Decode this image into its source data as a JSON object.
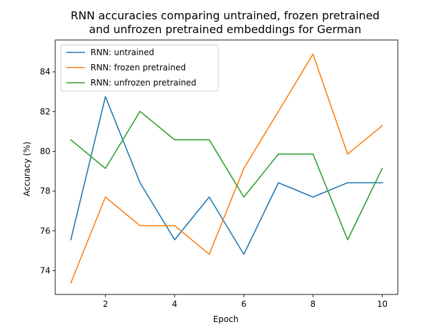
{
  "chart_data": {
    "type": "line",
    "title_lines": [
      "RNN accuracies comparing untrained, frozen pretrained",
      "and unfrozen pretrained embeddings for German"
    ],
    "xlabel": "Epoch",
    "ylabel": "Accuracy (%)",
    "x": [
      1,
      2,
      3,
      4,
      5,
      6,
      7,
      8,
      9,
      10
    ],
    "xlim": [
      0.55,
      10.45
    ],
    "ylim": [
      72.8,
      85.6
    ],
    "xticks": [
      2,
      4,
      6,
      8,
      10
    ],
    "yticks": [
      74,
      76,
      78,
      80,
      82,
      84
    ],
    "grid": false,
    "legend_position": "upper-left",
    "series": [
      {
        "name": "RNN: untrained",
        "color": "#1f77b4",
        "values": [
          75.55,
          82.75,
          78.42,
          75.55,
          77.7,
          74.82,
          78.42,
          77.7,
          78.42,
          78.42
        ]
      },
      {
        "name": "RNN: frozen pretrained",
        "color": "#ff7f0e",
        "values": [
          73.38,
          77.7,
          76.26,
          76.26,
          74.82,
          79.14,
          82.01,
          84.89,
          79.86,
          81.29
        ]
      },
      {
        "name": "RNN: unfrozen pretrained",
        "color": "#2ca02c",
        "values": [
          80.58,
          79.14,
          82.01,
          80.58,
          80.58,
          77.7,
          79.86,
          79.86,
          75.55,
          79.14
        ]
      }
    ]
  }
}
